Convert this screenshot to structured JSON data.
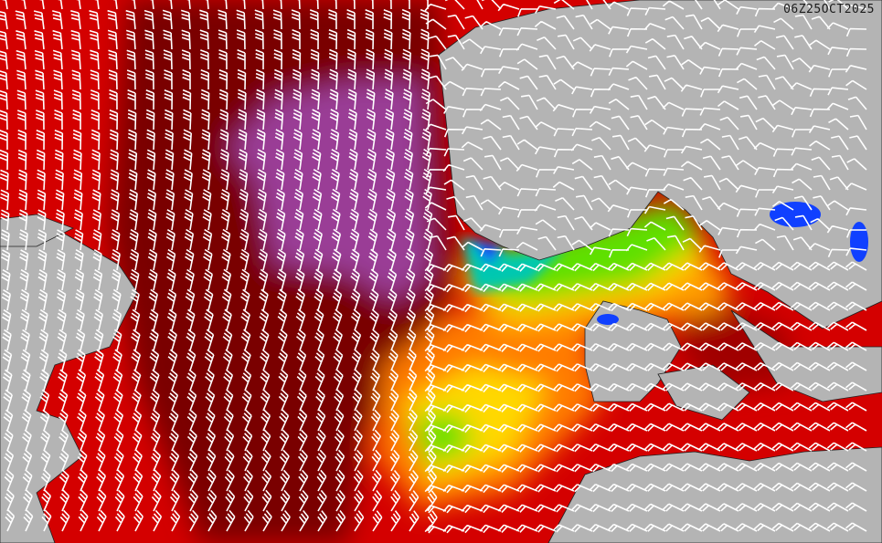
{
  "map": {
    "timestamp": "06Z25OCT2025",
    "colors": {
      "land": "#b4b4b4",
      "sea_dark_red": "#7a0000",
      "sea_red": "#d40000",
      "sea_orange": "#ff7a00",
      "sea_yellow": "#ffd800",
      "sea_green": "#5fe000",
      "sea_cyan": "#00c8b0",
      "sea_blue": "#1040ff",
      "sea_purple": "#9a3c96",
      "wind_barbs": "#ffffff"
    }
  }
}
